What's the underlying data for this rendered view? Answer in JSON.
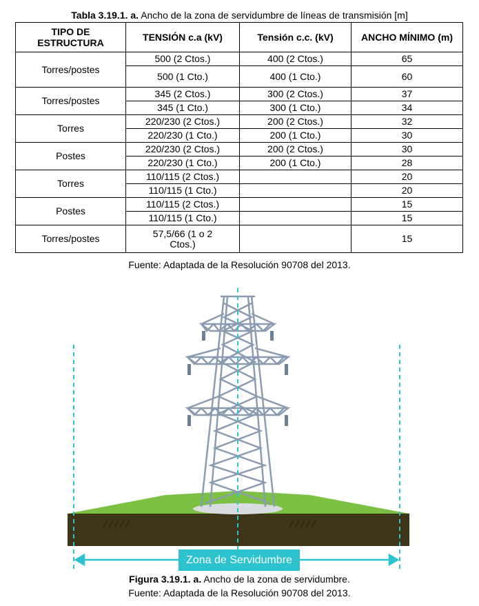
{
  "table": {
    "caption_label": "Tabla 3.19.1. a.",
    "caption_text": "Ancho de la zona de servidumbre de líneas de transmisión [m]",
    "header": [
      "TIPO DE ESTRUCTURA",
      "TENSIÓN c.a (kV)",
      "Tensión c.c. (kV)",
      "ANCHO MÍNIMO (m)"
    ],
    "groups": [
      {
        "type": "Torres/postes",
        "rows": [
          {
            "ac": "500 (2 Ctos.)",
            "cc": "400 (2 Ctos.)",
            "width": 65
          },
          {
            "ac": "500 (1 Cto.)",
            "cc": "400 (1 Cto.)",
            "width": 60
          }
        ]
      },
      {
        "type": "Torres/postes",
        "rows": [
          {
            "ac": "345 (2 Ctos.)",
            "cc": "300 (2 Ctos.)",
            "width": 37
          },
          {
            "ac": "345 (1 Cto.)",
            "cc": "300 (1 Cto.)",
            "width": 34
          }
        ]
      },
      {
        "type": "Torres",
        "rows": [
          {
            "ac": "220/230 (2 Ctos.)",
            "cc": "200 (2 Ctos.)",
            "width": 32
          },
          {
            "ac": "220/230 (1 Cto.)",
            "cc": "200 (1 Cto.)",
            "width": 30
          }
        ]
      },
      {
        "type": "Postes",
        "rows": [
          {
            "ac": "220/230 (2 Ctos.)",
            "cc": "200 (2 Ctos.)",
            "width": 30
          },
          {
            "ac": "220/230 (1 Cto.)",
            "cc": "200 (1 Cto.)",
            "width": 28
          }
        ]
      },
      {
        "type": "Torres",
        "rows": [
          {
            "ac": "110/115 (2 Ctos.)",
            "width": 20
          },
          {
            "ac": "110/115 (1 Cto.)",
            "width": 20
          }
        ]
      },
      {
        "type": "Postes",
        "rows": [
          {
            "ac": "110/115 (2 Ctos.)",
            "width": 15
          },
          {
            "ac": "110/115 (1 Cto.)",
            "width": 15
          }
        ]
      },
      {
        "type": "Torres/postes",
        "rows": [
          {
            "ac": "57,5/66 (1 o 2 Ctos.)",
            "width": 15
          }
        ]
      }
    ],
    "source": "Fuente: Adaptada de la Resolución 90708 del 2013."
  },
  "figure": {
    "zone_label": "Zona de Servidumbre",
    "caption_label": "Figura 3.19.1. a.",
    "caption_text": "Ancho de la zona de servidumbre.",
    "source": "Fuente: Adaptada de la Resolución 90708 del 2013."
  }
}
